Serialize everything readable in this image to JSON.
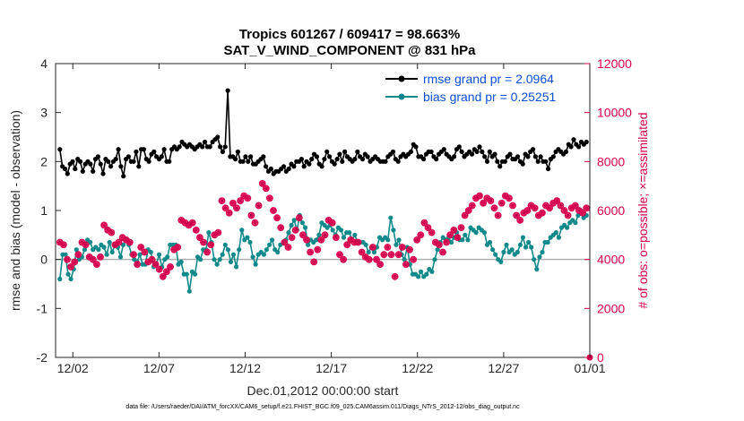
{
  "chart_data": {
    "type": "line",
    "title_line1": "Tropics 601267 / 609417 = 98.663%",
    "title_line2": "SAT_V_WIND_COMPONENT @ 831 hPa",
    "xlabel": "Dec.01,2012 00:00:00 start",
    "ylabel_left": "rmse and bias (model - observation)",
    "ylabel_right": "# of obs: o=possible; ×=assimilated",
    "xlim": [
      0,
      31
    ],
    "ylim_left": [
      -2,
      4
    ],
    "ylim_right": [
      0,
      12000
    ],
    "x_ticks": [
      {
        "x": 1,
        "label": "12/02"
      },
      {
        "x": 6,
        "label": "12/07"
      },
      {
        "x": 11,
        "label": "12/12"
      },
      {
        "x": 16,
        "label": "12/17"
      },
      {
        "x": 21,
        "label": "12/22"
      },
      {
        "x": 26,
        "label": "12/27"
      },
      {
        "x": 31,
        "label": "01/01"
      }
    ],
    "y_ticks_left": [
      "-2",
      "-1",
      "0",
      "1",
      "2",
      "3",
      "4"
    ],
    "y_ticks_right": [
      "0",
      "2000",
      "4000",
      "6000",
      "8000",
      "10000",
      "12000"
    ],
    "footer": "data file: /Users/raeder/DAI/ATM_forcXX/CAM6_setup/f.e21.FHIST_BGC.f09_025.CAM6assim.011/Diags_NTrS_2012-12/obs_diag_output.nc",
    "colors": {
      "rmse": "#000000",
      "bias": "#12898a",
      "obs": "#d6004f",
      "zero": "#b0b0b0"
    },
    "series": [
      {
        "name": "rmse",
        "legend": "rmse grand pr = 2.0964",
        "values": [
          2.25,
          1.9,
          1.85,
          1.75,
          1.95,
          2.0,
          1.85,
          2.05,
          2.0,
          1.8,
          1.95,
          2.0,
          1.95,
          1.8,
          2.05,
          2.1,
          1.95,
          1.75,
          2.05,
          2.0,
          1.9,
          2.0,
          2.05,
          2.25,
          1.9,
          1.7,
          2.05,
          2.1,
          2.0,
          2.0,
          2.2,
          1.9,
          2.25,
          2.25,
          2.05,
          2.0,
          2.15,
          2.2,
          2.1,
          2.05,
          2.1,
          2.25,
          2.0,
          2.0,
          2.25,
          2.3,
          2.25,
          2.3,
          2.4,
          2.35,
          2.3,
          2.35,
          2.3,
          2.25,
          2.3,
          2.35,
          2.3,
          2.4,
          2.3,
          2.3,
          2.4,
          2.45,
          2.5,
          2.3,
          2.2,
          2.3,
          3.45,
          2.1,
          2.1,
          2.05,
          2.2,
          2.0,
          2.0,
          2.1,
          2.0,
          2.1,
          1.95,
          1.95,
          2.0,
          2.05,
          2.1,
          1.9,
          1.8,
          1.85,
          1.75,
          1.8,
          1.8,
          1.85,
          1.9,
          1.8,
          1.85,
          1.95,
          1.9,
          2.0,
          2.0,
          2.05,
          1.9,
          2.0,
          1.95,
          2.05,
          2.15,
          2.1,
          1.95,
          1.9,
          2.05,
          2.2,
          2.1,
          2.0,
          1.95,
          2.05,
          2.15,
          2.0,
          2.2,
          2.1,
          2.05,
          2.0,
          2.05,
          2.2,
          2.1,
          2.05,
          2.15,
          2.1,
          2.0,
          2.05,
          2.1,
          2.05,
          2.0,
          2.0,
          2.0,
          2.1,
          2.15,
          2.2,
          2.05,
          2.0,
          2.1,
          2.15,
          2.1,
          2.15,
          2.2,
          2.35,
          2.3,
          2.1,
          2.1,
          2.05,
          2.15,
          2.2,
          2.2,
          2.1,
          2.05,
          2.15,
          2.2,
          2.25,
          2.15,
          2.1,
          2.05,
          2.1,
          2.25,
          2.3,
          2.2,
          2.1,
          2.15,
          2.2,
          2.15,
          2.25,
          2.2,
          2.3,
          2.2,
          2.1,
          2.0,
          2.2,
          2.1,
          2.15,
          2.0,
          1.9,
          2.0,
          2.0,
          2.1,
          2.15,
          2.05,
          2.05,
          2.1,
          2.0,
          1.95,
          2.15,
          2.1,
          2.2,
          2.25,
          2.1,
          2.0,
          2.1,
          2.0,
          2.0,
          1.85,
          2.05,
          2.1,
          2.2,
          2.25,
          2.2,
          2.15,
          2.2,
          2.35,
          2.3,
          2.45,
          2.35,
          2.3,
          2.4,
          2.35,
          2.4
        ]
      },
      {
        "name": "bias",
        "legend": "bias grand pr = 0.25251",
        "values": [
          -0.4,
          0.1,
          0.1,
          -0.3,
          -0.4,
          -0.2,
          0.2,
          0.0,
          0.05,
          0.2,
          0.4,
          0.35,
          0.2,
          0.25,
          0.2,
          0.3,
          0.25,
          0.1,
          0.35,
          0.15,
          0.3,
          0.25,
          0.05,
          0.3,
          0.4,
          0.3,
          0.1,
          0.0,
          -0.05,
          0.1,
          -0.1,
          -0.1,
          0.2,
          0.15,
          -0.15,
          -0.1,
          0.1,
          -0.15,
          0.0,
          0.05,
          0.3,
          0.3,
          0.3,
          -0.1,
          -0.05,
          -0.3,
          -0.3,
          -0.65,
          -0.25,
          -0.3,
          0.05,
          0.0,
          0.2,
          0.2,
          0.55,
          0.35,
          0.0,
          -0.1,
          0.0,
          0.1,
          0.3,
          0.2,
          -0.05,
          0.1,
          -0.15,
          0.2,
          0.6,
          0.4,
          0.45,
          0.35,
          0.05,
          -0.1,
          0.1,
          0.15,
          0.1,
          0.2,
          0.3,
          0.4,
          0.2,
          0.15,
          0.3,
          0.35,
          0.4,
          0.55,
          0.7,
          0.8,
          0.6,
          0.9,
          0.75,
          0.65,
          0.3,
          0.4,
          0.35,
          0.4,
          0.5,
          0.75,
          0.7,
          0.65,
          0.7,
          0.6,
          0.5,
          0.65,
          0.6,
          0.45,
          0.55,
          0.55,
          0.4,
          0.5,
          0.35,
          0.35,
          0.35,
          0.3,
          0.15,
          0.25,
          0.15,
          0.25,
          0.45,
          0.4,
          0.45,
          0.4,
          0.85,
          0.6,
          0.3,
          0.4,
          0.1,
          0.0,
          0.25,
          -0.1,
          -0.3,
          -0.3,
          -0.35,
          -0.25,
          -0.35,
          -0.3,
          -0.2,
          -0.25,
          0.0,
          0.2,
          0.35,
          0.45,
          0.4,
          0.45,
          0.35,
          0.45,
          0.55,
          0.4,
          0.4,
          0.5,
          0.4,
          0.65,
          0.6,
          0.55,
          0.65,
          0.6,
          0.55,
          0.3,
          0.35,
          0.2,
          0.1,
          0.0,
          -0.05,
          0.15,
          0.3,
          0.15,
          0.2,
          0.1,
          0.15,
          0.3,
          0.45,
          0.25,
          0.35,
          0.25,
          0.0,
          -0.2,
          0.05,
          0.15,
          0.35,
          0.35,
          0.45,
          0.5,
          0.55,
          0.45,
          0.65,
          0.7,
          0.65,
          0.75,
          0.8,
          0.75,
          0.9,
          1.0,
          0.85,
          0.9
        ]
      },
      {
        "name": "obs_possible",
        "values": [
          4700,
          4600,
          4000,
          3700,
          3900,
          4200,
          4700,
          4600,
          4100,
          4000,
          3800,
          4100,
          5400,
          5200,
          5100,
          4600,
          4700,
          4900,
          4800,
          4700,
          4200,
          3800,
          4500,
          4300,
          3900,
          4000,
          3800,
          3600,
          3300,
          3500,
          3700,
          4400,
          4500,
          5600,
          5500,
          5400,
          5500,
          5200,
          4900,
          4700,
          4300,
          4600,
          5000,
          5100,
          6400,
          6100,
          5900,
          6300,
          6100,
          6400,
          6600,
          6500,
          5800,
          5500,
          6200,
          7100,
          6900,
          6500,
          6000,
          5700,
          5300,
          4700,
          4500,
          4900,
          5200,
          5700,
          5000,
          4800,
          4300,
          3900,
          4400,
          4800,
          5000,
          5600,
          5500,
          4900,
          4200,
          4000,
          4600,
          4800,
          4700,
          4700,
          4300,
          4100,
          4000,
          4500,
          4000,
          3800,
          4200,
          4500,
          4200,
          3300,
          4200,
          4500,
          3800,
          4400,
          4000,
          4800,
          5000,
          5500,
          5300,
          5100,
          4700,
          4600,
          4300,
          4700,
          5000,
          5200,
          4900,
          5300,
          5800,
          6000,
          6200,
          6500,
          6600,
          6300,
          6500,
          6400,
          6100,
          5800,
          6300,
          6600,
          6500,
          6200,
          5800,
          5600,
          5900,
          6000,
          6200,
          6100,
          5800,
          5900,
          6200,
          6100,
          6300,
          6400,
          6200,
          6000,
          5800,
          6100,
          6200,
          6000,
          5900,
          6100
        ]
      },
      {
        "name": "obs_assimilated",
        "values": [
          4700,
          4600,
          4000,
          3700,
          3900,
          4200,
          4700,
          4600,
          4100,
          4000,
          3800,
          4100,
          5400,
          5200,
          5100,
          4600,
          4700,
          4900,
          4800,
          4700,
          4200,
          3800,
          4500,
          4300,
          3900,
          4000,
          3800,
          3600,
          3300,
          3500,
          3700,
          4400,
          4500,
          5600,
          5500,
          5400,
          5500,
          5200,
          4900,
          4700,
          4300,
          4600,
          5000,
          5100,
          6400,
          6100,
          5900,
          6300,
          6100,
          6400,
          6600,
          6500,
          5800,
          5500,
          6200,
          7100,
          6900,
          6500,
          6000,
          5700,
          5300,
          4700,
          4500,
          4900,
          5200,
          5700,
          5000,
          4800,
          4300,
          3900,
          4400,
          4800,
          5000,
          5600,
          5500,
          4900,
          4200,
          4000,
          4600,
          4800,
          4700,
          4700,
          4300,
          4100,
          4000,
          4500,
          4000,
          3800,
          4200,
          4500,
          4200,
          3300,
          4200,
          4500,
          3800,
          4400,
          4000,
          4800,
          5000,
          5500,
          5300,
          5100,
          4700,
          4600,
          4300,
          4700,
          5000,
          5200,
          4900,
          5300,
          5800,
          6000,
          6200,
          6500,
          6600,
          6300,
          6500,
          6400,
          6100,
          5800,
          6300,
          6600,
          6500,
          6200,
          5800,
          5600,
          5900,
          6000,
          6200,
          6100,
          5800,
          5900,
          6200,
          6100,
          6300,
          6400,
          6200,
          6000,
          5800,
          6100,
          6200,
          6000,
          5900,
          6100
        ]
      }
    ],
    "obs_tail_x": 31,
    "obs_tail_value": 0
  }
}
